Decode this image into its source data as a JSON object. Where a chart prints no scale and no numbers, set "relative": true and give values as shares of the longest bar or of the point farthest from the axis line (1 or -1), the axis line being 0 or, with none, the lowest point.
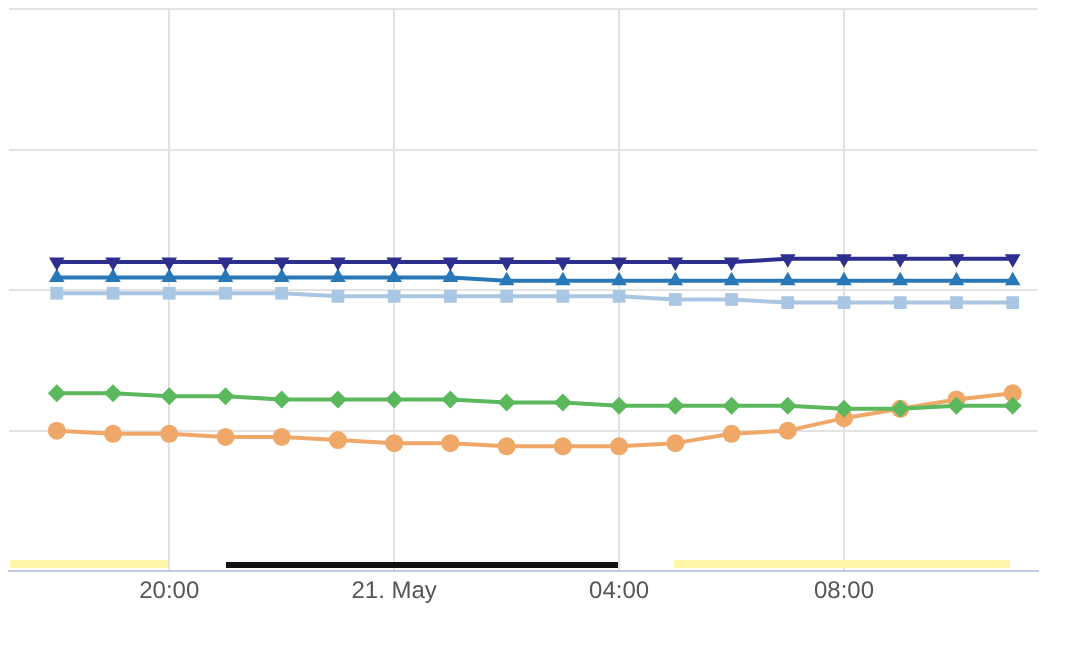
{
  "chart_data": {
    "type": "line",
    "relative": true,
    "grid": true,
    "legend": false,
    "tick_labels": "x",
    "line_style": "solid",
    "x": [
      "--05-20T18:00",
      "--05-20T19:00",
      "--05-20T20:00",
      "--05-20T21:00",
      "--05-20T22:00",
      "--05-20T23:00",
      "--05-21T00:00",
      "--05-21T01:00",
      "--05-21T02:00",
      "--05-21T03:00",
      "--05-21T04:00",
      "--05-21T05:00",
      "--05-21T06:00",
      "--05-21T07:00",
      "--05-21T08:00",
      "--05-21T09:00",
      "--05-21T10:00",
      "--05-21T11:00"
    ],
    "xlim": [
      "--05-20T17:09",
      "--05-21T11:27"
    ],
    "xticks": [
      {
        "value": "--05-20T20:00",
        "label": "20:00"
      },
      {
        "value": "--05-21T00:00",
        "label": "21. May"
      },
      {
        "value": "--05-21T04:00",
        "label": "04:00"
      },
      {
        "value": "--05-21T08:00",
        "label": "08:00"
      }
    ],
    "series": [
      {
        "color": "#2e2e8f",
        "marker": "triangle-down",
        "values": [
          0.99,
          0.99,
          0.99,
          0.99,
          0.99,
          0.99,
          0.99,
          0.99,
          0.99,
          0.99,
          0.99,
          0.99,
          0.99,
          1,
          1,
          1,
          1,
          1
        ]
      },
      {
        "color": "#2878b8",
        "marker": "triangle",
        "values": [
          0.94,
          0.94,
          0.94,
          0.94,
          0.94,
          0.94,
          0.94,
          0.94,
          0.93,
          0.93,
          0.93,
          0.93,
          0.93,
          0.93,
          0.93,
          0.93,
          0.93,
          0.93
        ]
      },
      {
        "color": "#a9c6e3",
        "marker": "square",
        "values": [
          0.89,
          0.89,
          0.89,
          0.89,
          0.89,
          0.88,
          0.88,
          0.88,
          0.88,
          0.88,
          0.88,
          0.87,
          0.87,
          0.86,
          0.86,
          0.86,
          0.86,
          0.86
        ]
      },
      {
        "color": "#5cb85c",
        "marker": "diamond",
        "values": [
          0.57,
          0.57,
          0.56,
          0.56,
          0.55,
          0.55,
          0.55,
          0.55,
          0.54,
          0.54,
          0.53,
          0.53,
          0.53,
          0.53,
          0.52,
          0.52,
          0.53,
          0.53
        ]
      },
      {
        "color": "#f0a868",
        "marker": "circle",
        "values": [
          0.45,
          0.44,
          0.44,
          0.43,
          0.43,
          0.42,
          0.41,
          0.41,
          0.4,
          0.4,
          0.4,
          0.41,
          0.44,
          0.45,
          0.49,
          0.52,
          0.55,
          0.57
        ]
      }
    ]
  }
}
